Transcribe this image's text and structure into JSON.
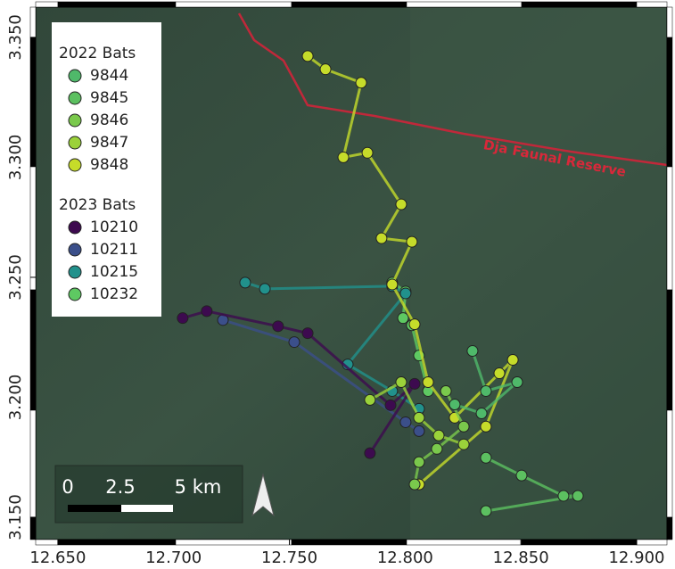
{
  "chart_data": {
    "type": "track",
    "xlim": [
      12.6404,
      12.9131
    ],
    "ylim": [
      3.1407,
      3.3626
    ],
    "xticks": [
      {
        "value": 12.65,
        "label": "12.650"
      },
      {
        "value": 12.7,
        "label": "12.700"
      },
      {
        "value": 12.75,
        "label": "12.750"
      },
      {
        "value": 12.8,
        "label": "12.800"
      },
      {
        "value": 12.85,
        "label": "12.850"
      },
      {
        "value": 12.9,
        "label": "12.900"
      }
    ],
    "yticks": [
      {
        "value": 3.15,
        "label": "3.150"
      },
      {
        "value": 3.2,
        "label": "3.200"
      },
      {
        "value": 3.25,
        "label": "3.250"
      },
      {
        "value": 3.3,
        "label": "3.300"
      },
      {
        "value": 3.35,
        "label": "3.350"
      }
    ],
    "annotations": [
      {
        "text": "Dja Faunal Reserve"
      }
    ],
    "scale_bar": {
      "labels": [
        "0",
        "2.5",
        "5 km"
      ]
    },
    "groups": [
      {
        "title": "2022 Bats",
        "series": [
          {
            "name": "9844",
            "color": "#4fb96a",
            "x": [
              12.8291,
              12.8349,
              12.8484,
              12.833,
              12.8214
            ],
            "y": [
              3.2193,
              3.2026,
              3.2063,
              3.1933,
              3.197
            ]
          },
          {
            "name": "9845",
            "color": "#5cc060",
            "x": [
              12.8349,
              12.8503,
              12.8684,
              12.8746,
              12.8349
            ],
            "y": [
              3.1748,
              3.1674,
              3.1589,
              3.1589,
              3.1526
            ]
          },
          {
            "name": "9846",
            "color": "#7ac94c",
            "x": [
              12.8176,
              12.8253,
              12.8137,
              12.806,
              12.8041
            ],
            "y": [
              3.2026,
              3.1878,
              3.1785,
              3.173,
              3.1637
            ]
          },
          {
            "name": "9847",
            "color": "#9bd23a",
            "x": [
              12.7848,
              12.7983,
              12.806,
              12.8145,
              12.8253
            ],
            "y": [
              3.1989,
              3.2063,
              3.1915,
              3.1841,
              3.1804
            ]
          },
          {
            "name": "9848",
            "color": "#c6dc2a",
            "x": [
              12.7579,
              12.7656,
              12.781,
              12.7733,
              12.7837,
              12.7983,
              12.7898,
              12.8029,
              12.7944,
              12.8041,
              12.8099,
              12.8214,
              12.8407,
              12.8465,
              12.8349,
              12.806
            ],
            "y": [
              3.3422,
              3.3367,
              3.3311,
              3.3,
              3.3019,
              3.2804,
              3.2663,
              3.2648,
              3.247,
              3.2304,
              3.2063,
              3.1915,
              3.21,
              3.2156,
              3.1878,
              3.1637
            ]
          }
        ]
      },
      {
        "title": "2023 Bats",
        "series": [
          {
            "name": "10210",
            "color": "#3d0a4f",
            "x": [
              12.7039,
              12.7143,
              12.7451,
              12.7579,
              12.7937,
              12.8041,
              12.7848
            ],
            "y": [
              3.233,
              3.2359,
              3.2296,
              3.2267,
              3.1967,
              3.2056,
              3.1767
            ]
          },
          {
            "name": "10211",
            "color": "#3b4f8a",
            "x": [
              12.7213,
              12.7521,
              12.8002,
              12.806
            ],
            "y": [
              3.2322,
              3.223,
              3.1896,
              3.1859
            ]
          },
          {
            "name": "10215",
            "color": "#21918c",
            "x": [
              12.7309,
              12.7394,
              12.7944,
              12.8002,
              12.7752,
              12.7944,
              12.806
            ],
            "y": [
              3.2478,
              3.2452,
              3.2463,
              3.2433,
              3.2137,
              3.2026,
              3.1952
            ]
          },
          {
            "name": "10232",
            "color": "#5ec962",
            "x": [
              12.7944,
              12.8002,
              12.7991,
              12.8029,
              12.806,
              12.8099
            ],
            "y": [
              3.2478,
              3.2441,
              3.233,
              3.23,
              3.2174,
              3.2026
            ]
          }
        ]
      }
    ]
  }
}
